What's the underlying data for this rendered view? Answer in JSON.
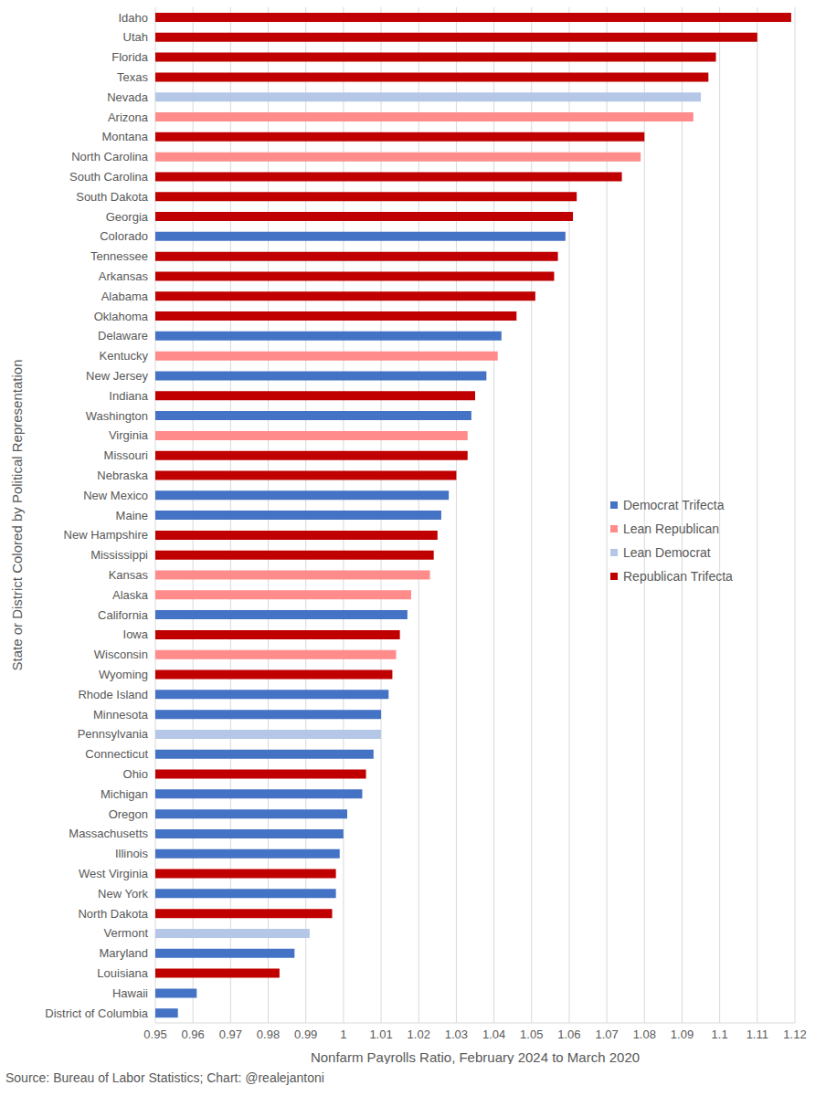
{
  "chart_data": {
    "type": "bar",
    "orientation": "horizontal",
    "y_label": "State or District Colored by Political Representation",
    "x_label": "Nonfarm Payrolls Ratio, February 2024 to March 2020",
    "source": "Source: Bureau of Labor Statistics; Chart: @realejantoni",
    "categories": [
      "Idaho",
      "Utah",
      "Florida",
      "Texas",
      "Nevada",
      "Arizona",
      "Montana",
      "North Carolina",
      "South Carolina",
      "South Dakota",
      "Georgia",
      "Colorado",
      "Tennessee",
      "Arkansas",
      "Alabama",
      "Oklahoma",
      "Delaware",
      "Kentucky",
      "New Jersey",
      "Indiana",
      "Washington",
      "Virginia",
      "Missouri",
      "Nebraska",
      "New Mexico",
      "Maine",
      "New Hampshire",
      "Mississippi",
      "Kansas",
      "Alaska",
      "California",
      "Iowa",
      "Wisconsin",
      "Wyoming",
      "Rhode Island",
      "Minnesota",
      "Pennsylvania",
      "Connecticut",
      "Ohio",
      "Michigan",
      "Oregon",
      "Massachusetts",
      "Illinois",
      "West Virginia",
      "New York",
      "North Dakota",
      "Vermont",
      "Maryland",
      "Louisiana",
      "Hawaii",
      "District of Columbia"
    ],
    "series": [
      {
        "name": "Democrat Trifecta",
        "color": "#4472c4",
        "values": [
          null,
          null,
          null,
          null,
          null,
          null,
          null,
          null,
          null,
          null,
          null,
          1.059,
          null,
          null,
          null,
          null,
          1.042,
          null,
          1.038,
          null,
          1.034,
          null,
          null,
          null,
          1.028,
          1.026,
          null,
          null,
          null,
          null,
          1.017,
          null,
          null,
          null,
          1.012,
          1.01,
          null,
          1.008,
          null,
          1.005,
          1.001,
          1.0,
          0.999,
          null,
          0.998,
          null,
          null,
          0.987,
          null,
          0.961,
          0.956
        ]
      },
      {
        "name": "Lean Republican",
        "color": "#ff8b8b",
        "values": [
          null,
          null,
          null,
          null,
          null,
          1.093,
          null,
          1.079,
          null,
          null,
          null,
          null,
          null,
          null,
          null,
          null,
          null,
          1.041,
          null,
          null,
          null,
          1.033,
          null,
          null,
          null,
          null,
          null,
          null,
          1.023,
          1.018,
          null,
          null,
          1.014,
          null,
          null,
          null,
          null,
          null,
          null,
          null,
          null,
          null,
          null,
          null,
          null,
          null,
          null,
          null,
          null,
          null,
          null
        ]
      },
      {
        "name": "Lean Democrat",
        "color": "#b4c7e7",
        "values": [
          null,
          null,
          null,
          null,
          1.095,
          null,
          null,
          null,
          null,
          null,
          null,
          null,
          null,
          null,
          null,
          null,
          null,
          null,
          null,
          null,
          null,
          null,
          null,
          null,
          null,
          null,
          null,
          null,
          null,
          null,
          null,
          null,
          null,
          null,
          null,
          null,
          1.01,
          null,
          null,
          null,
          null,
          null,
          null,
          null,
          null,
          null,
          0.991,
          null,
          null,
          null,
          null
        ]
      },
      {
        "name": "Republican Trifecta",
        "color": "#c00000",
        "values": [
          1.119,
          1.11,
          1.099,
          1.097,
          null,
          null,
          1.08,
          null,
          1.074,
          1.062,
          1.061,
          null,
          1.057,
          1.056,
          1.051,
          1.046,
          null,
          null,
          null,
          1.035,
          null,
          null,
          1.033,
          1.03,
          null,
          null,
          1.025,
          1.024,
          null,
          null,
          null,
          1.015,
          null,
          1.013,
          null,
          null,
          null,
          null,
          1.006,
          null,
          null,
          null,
          null,
          0.998,
          null,
          0.997,
          null,
          null,
          0.983,
          null,
          null
        ]
      }
    ],
    "xlim": [
      0.95,
      1.12
    ],
    "xticks": [
      0.95,
      0.96,
      0.97,
      0.98,
      0.99,
      1,
      1.01,
      1.02,
      1.03,
      1.04,
      1.05,
      1.06,
      1.07,
      1.08,
      1.09,
      1.1,
      1.11,
      1.12
    ],
    "grid": true,
    "legend": "right"
  }
}
